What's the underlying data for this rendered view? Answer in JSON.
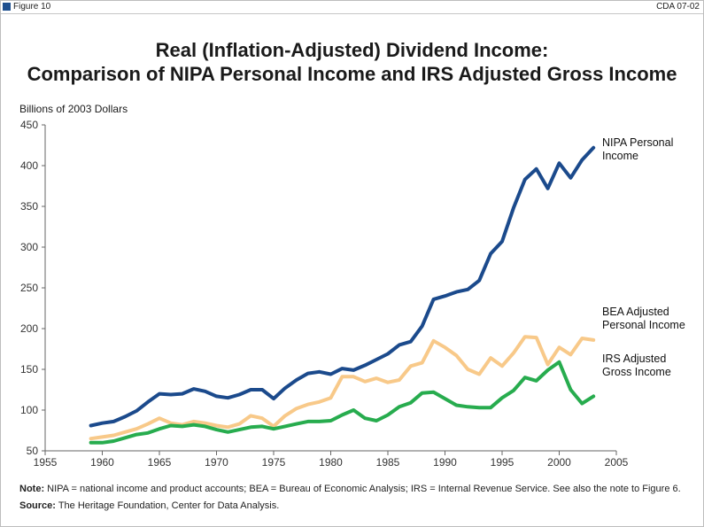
{
  "header": {
    "figure_label": "Figure 10",
    "code": "CDA 07-02"
  },
  "title_line1": "Real (Inflation-Adjusted) Dividend Income:",
  "title_line2": "Comparison of NIPA Personal Income and IRS Adjusted Gross Income",
  "note": {
    "label": "Note:",
    "text": " NIPA = national income and product accounts; BEA = Bureau of Economic Analysis; IRS = Internal Revenue Service. See also the note to Figure 6."
  },
  "source": {
    "label": "Source:",
    "text": " The Heritage Foundation, Center for Data Analysis."
  },
  "chart_data": {
    "type": "line",
    "ylabel": "Billions of 2003 Dollars",
    "xlabel": "",
    "xlim": [
      1955,
      2005
    ],
    "ylim": [
      50,
      450
    ],
    "xticks": [
      1955,
      1960,
      1965,
      1970,
      1975,
      1980,
      1985,
      1990,
      1995,
      2000,
      2005
    ],
    "yticks": [
      50,
      100,
      150,
      200,
      250,
      300,
      350,
      400,
      450
    ],
    "grid": false,
    "legend": "inline labels at line ends",
    "x": [
      1959,
      1960,
      1961,
      1962,
      1963,
      1964,
      1965,
      1966,
      1967,
      1968,
      1969,
      1970,
      1971,
      1972,
      1973,
      1974,
      1975,
      1976,
      1977,
      1978,
      1979,
      1980,
      1981,
      1982,
      1983,
      1984,
      1985,
      1986,
      1987,
      1988,
      1989,
      1990,
      1991,
      1992,
      1993,
      1994,
      1995,
      1996,
      1997,
      1998,
      1999,
      2000,
      2001,
      2002,
      2003
    ],
    "series": [
      {
        "name": "NIPA Personal Income",
        "label_lines": [
          "NIPA Personal",
          "Income"
        ],
        "color": "#1b4a8c",
        "values": [
          81,
          84,
          86,
          92,
          99,
          110,
          120,
          119,
          120,
          126,
          123,
          117,
          115,
          119,
          125,
          125,
          114,
          127,
          137,
          145,
          147,
          144,
          151,
          149,
          155,
          162,
          169,
          180,
          184,
          203,
          236,
          240,
          245,
          248,
          259,
          292,
          307,
          348,
          383,
          396,
          372,
          403,
          385,
          407,
          422
        ]
      },
      {
        "name": "BEA Adjusted Personal Income",
        "label_lines": [
          "BEA Adjusted",
          "Personal Income"
        ],
        "color": "#f8c989",
        "values": [
          65,
          67,
          69,
          73,
          77,
          83,
          90,
          84,
          82,
          86,
          84,
          81,
          79,
          83,
          93,
          90,
          80,
          93,
          102,
          107,
          110,
          115,
          141,
          141,
          135,
          139,
          134,
          137,
          154,
          158,
          185,
          177,
          167,
          150,
          144,
          164,
          154,
          170,
          190,
          189,
          156,
          177,
          168,
          188,
          186
        ]
      },
      {
        "name": "IRS Adjusted Gross Income",
        "label_lines": [
          "IRS Adjusted",
          "Gross Income"
        ],
        "color": "#27ac4e",
        "values": [
          60,
          60,
          62,
          66,
          70,
          72,
          77,
          81,
          80,
          82,
          80,
          76,
          73,
          76,
          79,
          80,
          77,
          80,
          83,
          86,
          86,
          87,
          94,
          100,
          90,
          87,
          94,
          104,
          109,
          121,
          122,
          114,
          106,
          104,
          103,
          103,
          115,
          124,
          140,
          136,
          149,
          159,
          125,
          108,
          117
        ]
      }
    ]
  }
}
